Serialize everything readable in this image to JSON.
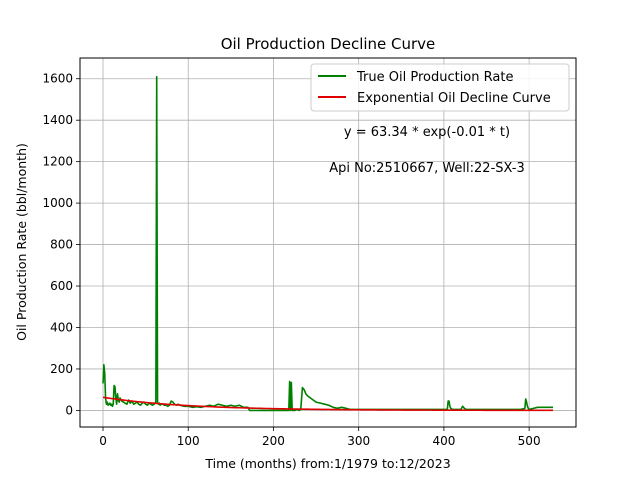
{
  "chart_data": {
    "type": "line",
    "title": "Oil Production Decline Curve",
    "xlabel": "Time (months) from:1/1979 to:12/2023",
    "ylabel": "Oil Production Rate (bbl/month)",
    "xlim": [
      -27,
      555
    ],
    "ylim": [
      -80,
      1700
    ],
    "xticks": [
      0,
      100,
      200,
      300,
      400,
      500
    ],
    "yticks": [
      0,
      200,
      400,
      600,
      800,
      1000,
      1200,
      1400,
      1600
    ],
    "grid": true,
    "legend_position": "top-right",
    "annotations": [
      "y = 63.34 * exp(-0.01 * t)",
      "Api No:2510667, Well:22-SX-3"
    ],
    "series": [
      {
        "name": "True Oil Production Rate",
        "color": "#008000",
        "x": [
          0,
          1,
          2,
          3,
          4,
          5,
          6,
          7,
          8,
          9,
          10,
          11,
          12,
          13,
          14,
          15,
          16,
          17,
          18,
          19,
          20,
          22,
          24,
          26,
          28,
          30,
          32,
          34,
          36,
          38,
          40,
          42,
          44,
          46,
          48,
          50,
          52,
          54,
          56,
          58,
          60,
          62,
          63,
          64,
          65,
          66,
          67,
          68,
          70,
          72,
          74,
          76,
          78,
          80,
          82,
          84,
          86,
          88,
          90,
          95,
          100,
          105,
          110,
          115,
          120,
          125,
          130,
          135,
          140,
          145,
          150,
          155,
          160,
          165,
          170,
          172,
          180,
          190,
          200,
          210,
          218,
          219,
          220,
          221,
          222,
          225,
          228,
          230,
          232,
          234,
          236,
          238,
          240,
          245,
          250,
          255,
          260,
          265,
          270,
          275,
          280,
          285,
          290,
          300,
          310,
          320,
          330,
          340,
          350,
          360,
          370,
          380,
          390,
          400,
          403,
          404,
          405,
          406,
          407,
          408,
          410,
          415,
          420,
          422,
          424,
          426,
          430,
          440,
          450,
          460,
          470,
          480,
          490,
          495,
          496,
          497,
          498,
          499,
          500,
          505,
          510,
          515,
          520,
          525,
          528
        ],
        "y": [
          130,
          220,
          180,
          60,
          30,
          40,
          25,
          30,
          35,
          25,
          30,
          20,
          30,
          120,
          115,
          60,
          30,
          80,
          50,
          40,
          60,
          45,
          40,
          35,
          30,
          50,
          35,
          45,
          30,
          35,
          40,
          30,
          25,
          35,
          40,
          30,
          25,
          35,
          30,
          25,
          30,
          40,
          1610,
          40,
          30,
          35,
          25,
          30,
          30,
          25,
          25,
          20,
          25,
          45,
          40,
          30,
          25,
          30,
          25,
          20,
          20,
          15,
          18,
          15,
          20,
          25,
          20,
          30,
          25,
          20,
          25,
          20,
          25,
          15,
          15,
          0,
          0,
          0,
          0,
          0,
          0,
          140,
          0,
          135,
          0,
          0,
          5,
          0,
          5,
          110,
          100,
          80,
          70,
          55,
          40,
          35,
          30,
          25,
          15,
          10,
          15,
          10,
          5,
          5,
          5,
          5,
          5,
          5,
          5,
          5,
          5,
          5,
          5,
          5,
          5,
          5,
          45,
          45,
          20,
          10,
          5,
          5,
          5,
          20,
          10,
          5,
          5,
          5,
          5,
          5,
          5,
          5,
          5,
          10,
          55,
          40,
          20,
          10,
          5,
          10,
          15,
          15,
          15,
          15,
          15
        ]
      },
      {
        "name": "Exponential Oil Decline Curve",
        "color": "#e00000",
        "model": {
          "a": 63.34,
          "b": -0.01
        },
        "x_range": [
          0,
          528
        ]
      }
    ]
  }
}
